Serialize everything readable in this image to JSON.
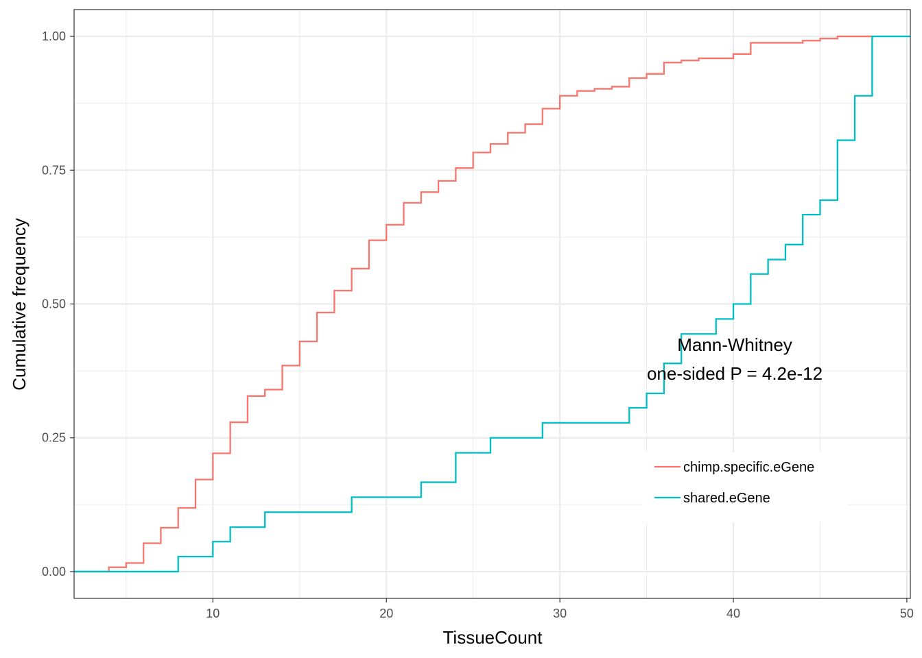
{
  "chart_data": {
    "type": "line",
    "step": true,
    "xlabel": "TissueCount",
    "ylabel": "Cumulative frequency",
    "xlim": [
      2,
      50.2
    ],
    "ylim": [
      -0.05,
      1.05
    ],
    "x_ticks": [
      10,
      20,
      30,
      40,
      50
    ],
    "x_tick_labels": [
      "10",
      "20",
      "30",
      "40",
      "50"
    ],
    "y_ticks": [
      0,
      0.25,
      0.5,
      0.75,
      1
    ],
    "y_tick_labels": [
      "0.00",
      "0.25",
      "0.50",
      "0.75",
      "1.00"
    ],
    "grid": true,
    "legend_position": "bottom-right",
    "annotation": [
      "Mann-Whitney",
      "one-sided P = 4.2e-12"
    ],
    "series": [
      {
        "name": "chimp.specific.eGene",
        "color": "#F8766D",
        "points": [
          [
            2,
            0
          ],
          [
            4,
            0.008
          ],
          [
            5,
            0.016
          ],
          [
            6,
            0.053
          ],
          [
            7,
            0.082
          ],
          [
            8,
            0.119
          ],
          [
            9,
            0.172
          ],
          [
            10,
            0.221
          ],
          [
            11,
            0.279
          ],
          [
            12,
            0.328
          ],
          [
            13,
            0.34
          ],
          [
            14,
            0.385
          ],
          [
            15,
            0.43
          ],
          [
            16,
            0.484
          ],
          [
            17,
            0.525
          ],
          [
            18,
            0.566
          ],
          [
            19,
            0.619
          ],
          [
            20,
            0.648
          ],
          [
            21,
            0.689
          ],
          [
            22,
            0.709
          ],
          [
            23,
            0.73
          ],
          [
            24,
            0.754
          ],
          [
            25,
            0.783
          ],
          [
            26,
            0.799
          ],
          [
            27,
            0.82
          ],
          [
            28,
            0.836
          ],
          [
            29,
            0.865
          ],
          [
            30,
            0.889
          ],
          [
            31,
            0.898
          ],
          [
            32,
            0.902
          ],
          [
            33,
            0.906
          ],
          [
            34,
            0.922
          ],
          [
            35,
            0.93
          ],
          [
            36,
            0.951
          ],
          [
            37,
            0.955
          ],
          [
            38,
            0.959
          ],
          [
            40,
            0.967
          ],
          [
            41,
            0.988
          ],
          [
            44,
            0.992
          ],
          [
            45,
            0.996
          ],
          [
            46,
            1.0
          ],
          [
            48,
            1.0
          ]
        ]
      },
      {
        "name": "shared.eGene",
        "color": "#00BFC4",
        "points": [
          [
            2,
            0
          ],
          [
            8,
            0.028
          ],
          [
            10,
            0.056
          ],
          [
            11,
            0.083
          ],
          [
            13,
            0.111
          ],
          [
            18,
            0.139
          ],
          [
            22,
            0.167
          ],
          [
            24,
            0.222
          ],
          [
            26,
            0.25
          ],
          [
            29,
            0.278
          ],
          [
            34,
            0.306
          ],
          [
            35,
            0.333
          ],
          [
            36,
            0.389
          ],
          [
            37,
            0.444
          ],
          [
            39,
            0.472
          ],
          [
            40,
            0.5
          ],
          [
            41,
            0.556
          ],
          [
            42,
            0.583
          ],
          [
            43,
            0.611
          ],
          [
            44,
            0.667
          ],
          [
            45,
            0.694
          ],
          [
            46,
            0.806
          ],
          [
            47,
            0.889
          ],
          [
            48,
            1.0
          ],
          [
            50.2,
            1.0
          ]
        ]
      }
    ]
  }
}
